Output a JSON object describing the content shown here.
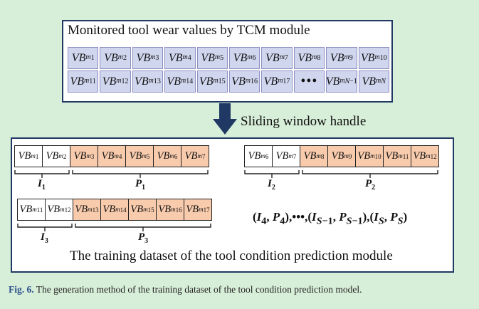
{
  "top_box": {
    "title": "Monitored tool wear values by TCM module",
    "row1": [
      "1",
      "2",
      "3",
      "4",
      "5",
      "6",
      "7",
      "8",
      "9",
      "10"
    ],
    "row2": [
      "11",
      "12",
      "13",
      "14",
      "15",
      "16",
      "17",
      "•••",
      "N−1",
      "N"
    ],
    "var": "VB",
    "sup": "m"
  },
  "arrow_label": "Sliding window handle",
  "windows": [
    {
      "cells": [
        "1",
        "2",
        "3",
        "4",
        "5",
        "6",
        "7"
      ],
      "input_count": 2,
      "input_label_sub": "1",
      "pred_label_sub": "1"
    },
    {
      "cells": [
        "6",
        "7",
        "8",
        "9",
        "10",
        "11",
        "12"
      ],
      "input_count": 2,
      "input_label_sub": "2",
      "pred_label_sub": "2"
    },
    {
      "cells": [
        "11",
        "12",
        "13",
        "14",
        "15",
        "16",
        "17"
      ],
      "input_count": 2,
      "input_label_sub": "3",
      "pred_label_sub": "3"
    }
  ],
  "input_symbol": "I",
  "pred_symbol": "P",
  "bottom_title": "The training dataset of the tool condition prediction module",
  "caption": {
    "fig_label": "Fig. 6.",
    "text": "The generation method of the training dataset of the tool condition prediction model."
  },
  "colors": {
    "input": "#ffffff",
    "prediction": "#f8cbad",
    "monitored": "#cfd6ee",
    "frame": "#1f3864",
    "arrow": "#1f3864"
  }
}
